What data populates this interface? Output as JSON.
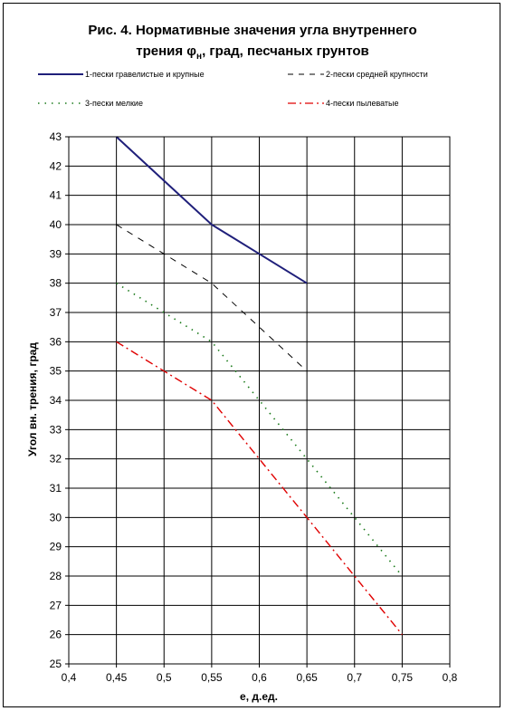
{
  "chart_data": {
    "type": "line",
    "title_line1": "Рис. 4. Нормативные значения угла внутреннего",
    "title_line2_pre": "трения φ",
    "title_line2_sub": "н",
    "title_line2_post": ", град, песчаных грунтов",
    "xlabel": "е, д.ед.",
    "ylabel": "Угол вн. трения, град",
    "xlim": [
      0.4,
      0.8
    ],
    "ylim": [
      25,
      43
    ],
    "x_ticks": [
      "0,4",
      "0,45",
      "0,5",
      "0,55",
      "0,6",
      "0,65",
      "0,7",
      "0,75",
      "0,8"
    ],
    "y_ticks": [
      "25",
      "26",
      "27",
      "28",
      "29",
      "30",
      "31",
      "32",
      "33",
      "34",
      "35",
      "36",
      "37",
      "38",
      "39",
      "40",
      "41",
      "42",
      "43"
    ],
    "grid": true,
    "legend_position": "top",
    "series": [
      {
        "name": "1-пески гравелистые и крупные",
        "color": "#1f1f7a",
        "style": "solid",
        "x": [
          0.45,
          0.5,
          0.55,
          0.6,
          0.65
        ],
        "y": [
          43,
          41.5,
          40,
          39,
          38
        ]
      },
      {
        "name": "2-пески средней крупности",
        "color": "#000000",
        "style": "dashed",
        "x": [
          0.45,
          0.5,
          0.55,
          0.6,
          0.65
        ],
        "y": [
          40,
          39,
          38,
          36.5,
          35
        ]
      },
      {
        "name": "3-пески мелкие",
        "color": "#1a7a1a",
        "style": "dotted",
        "x": [
          0.45,
          0.5,
          0.55,
          0.6,
          0.65,
          0.7,
          0.75
        ],
        "y": [
          38,
          37,
          36,
          34,
          32,
          30,
          28
        ]
      },
      {
        "name": "4-пески пылеватые",
        "color": "#e00000",
        "style": "dashdot",
        "x": [
          0.45,
          0.5,
          0.55,
          0.6,
          0.65,
          0.7,
          0.75
        ],
        "y": [
          36,
          35,
          34,
          32,
          30,
          28,
          26
        ]
      }
    ]
  }
}
